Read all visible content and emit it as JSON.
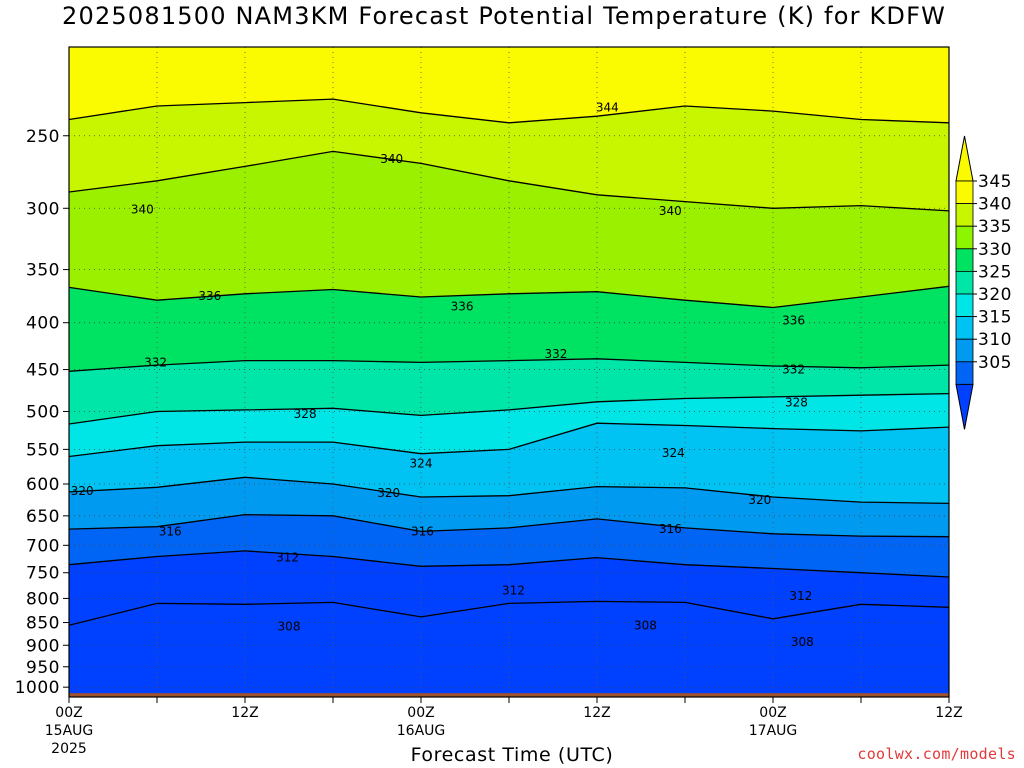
{
  "title": "2025081500 NAM3KM Forecast Potential Temperature (K) for KDFW",
  "credit": "coolwx.com/models",
  "chart_data": {
    "type": "contour",
    "variable": "Potential Temperature (K)",
    "xlabel": "Forecast Time (UTC)",
    "ylabel": "",
    "x_forecast_hours": [
      0,
      6,
      12,
      18,
      24,
      30,
      36,
      42,
      48,
      54,
      60
    ],
    "x_ticks": [
      {
        "hour": 0,
        "label": "00Z",
        "sub": "15AUG",
        "sub2": "2025"
      },
      {
        "hour": 12,
        "label": "12Z",
        "sub": "",
        "sub2": ""
      },
      {
        "hour": 24,
        "label": "00Z",
        "sub": "16AUG",
        "sub2": ""
      },
      {
        "hour": 36,
        "label": "12Z",
        "sub": "",
        "sub2": ""
      },
      {
        "hour": 48,
        "label": "00Z",
        "sub": "17AUG",
        "sub2": ""
      },
      {
        "hour": 60,
        "label": "12Z",
        "sub": "",
        "sub2": ""
      }
    ],
    "y_ticks": [
      "250",
      "300",
      "350",
      "400",
      "450",
      "500",
      "550",
      "600",
      "650",
      "700",
      "750",
      "800",
      "850",
      "900",
      "950",
      "1000"
    ],
    "ylim": [
      1025,
      200
    ],
    "y_scale": "log",
    "colorbar": {
      "labels": [
        "345",
        "340",
        "335",
        "330",
        "325",
        "320",
        "315",
        "310",
        "305"
      ],
      "colors": [
        "#fafa00",
        "#c8f500",
        "#8ef500",
        "#00e262",
        "#00e6a8",
        "#00e6e6",
        "#00c3f3",
        "#009af0",
        "#0064f5",
        "#0040ff"
      ]
    },
    "contour_lines": [
      {
        "label": "308",
        "theta": 308,
        "profile": [
          [
            0,
            856
          ],
          [
            6,
            810
          ],
          [
            12,
            812
          ],
          [
            18,
            808
          ],
          [
            24,
            838
          ],
          [
            30,
            810
          ],
          [
            36,
            806
          ],
          [
            42,
            808
          ],
          [
            48,
            842
          ],
          [
            54,
            812
          ],
          [
            60,
            818
          ]
        ]
      },
      {
        "label": "312",
        "theta": 312,
        "profile": [
          [
            0,
            735
          ],
          [
            6,
            720
          ],
          [
            12,
            710
          ],
          [
            18,
            720
          ],
          [
            24,
            738
          ],
          [
            30,
            735
          ],
          [
            36,
            722
          ],
          [
            42,
            735
          ],
          [
            48,
            742
          ],
          [
            54,
            750
          ],
          [
            60,
            758
          ]
        ]
      },
      {
        "label": "316",
        "theta": 316,
        "profile": [
          [
            0,
            672
          ],
          [
            6,
            668
          ],
          [
            12,
            648
          ],
          [
            18,
            650
          ],
          [
            24,
            676
          ],
          [
            30,
            670
          ],
          [
            36,
            655
          ],
          [
            42,
            670
          ],
          [
            48,
            680
          ],
          [
            54,
            684
          ],
          [
            60,
            685
          ]
        ]
      },
      {
        "label": "320",
        "theta": 320,
        "profile": [
          [
            0,
            612
          ],
          [
            6,
            605
          ],
          [
            12,
            590
          ],
          [
            18,
            600
          ],
          [
            24,
            620
          ],
          [
            30,
            618
          ],
          [
            36,
            604
          ],
          [
            42,
            606
          ],
          [
            48,
            620
          ],
          [
            54,
            628
          ],
          [
            60,
            630
          ]
        ]
      },
      {
        "label": "324",
        "theta": 324,
        "profile": [
          [
            0,
            560
          ],
          [
            6,
            545
          ],
          [
            12,
            540
          ],
          [
            18,
            540
          ],
          [
            24,
            556
          ],
          [
            30,
            550
          ],
          [
            36,
            515
          ],
          [
            42,
            518
          ],
          [
            48,
            522
          ],
          [
            54,
            525
          ],
          [
            60,
            520
          ]
        ]
      },
      {
        "label": "328",
        "theta": 328,
        "profile": [
          [
            0,
            516
          ],
          [
            6,
            500
          ],
          [
            12,
            498
          ],
          [
            18,
            496
          ],
          [
            24,
            505
          ],
          [
            30,
            498
          ],
          [
            36,
            488
          ],
          [
            42,
            484
          ],
          [
            48,
            482
          ],
          [
            54,
            480
          ],
          [
            60,
            478
          ]
        ]
      },
      {
        "label": "332",
        "theta": 332,
        "profile": [
          [
            0,
            452
          ],
          [
            6,
            445
          ],
          [
            12,
            440
          ],
          [
            18,
            440
          ],
          [
            24,
            442
          ],
          [
            30,
            440
          ],
          [
            36,
            438
          ],
          [
            42,
            442
          ],
          [
            48,
            446
          ],
          [
            54,
            448
          ],
          [
            60,
            445
          ]
        ]
      },
      {
        "label": "336",
        "theta": 336,
        "profile": [
          [
            0,
            366
          ],
          [
            6,
            378
          ],
          [
            12,
            372
          ],
          [
            18,
            368
          ],
          [
            24,
            375
          ],
          [
            30,
            372
          ],
          [
            36,
            370
          ],
          [
            42,
            378
          ],
          [
            48,
            385
          ],
          [
            54,
            375
          ],
          [
            60,
            365
          ]
        ]
      },
      {
        "label": "340",
        "theta": 340,
        "profile": [
          [
            0,
            288
          ],
          [
            6,
            280
          ],
          [
            12,
            270
          ],
          [
            18,
            260
          ],
          [
            24,
            268
          ],
          [
            30,
            280
          ],
          [
            36,
            290
          ],
          [
            42,
            295
          ],
          [
            48,
            300
          ],
          [
            54,
            298
          ],
          [
            60,
            302
          ]
        ]
      },
      {
        "label": "344",
        "theta": 344,
        "profile": [
          [
            0,
            240
          ],
          [
            6,
            232
          ],
          [
            12,
            230
          ],
          [
            18,
            228
          ],
          [
            24,
            236
          ],
          [
            30,
            242
          ],
          [
            36,
            238
          ],
          [
            42,
            232
          ],
          [
            48,
            235
          ],
          [
            54,
            240
          ],
          [
            60,
            242
          ]
        ]
      }
    ],
    "contour_labels": [
      {
        "text": "344",
        "hour": 36.7,
        "p": 233
      },
      {
        "text": "340",
        "hour": 22.0,
        "p": 265
      },
      {
        "text": "340",
        "hour": 5.0,
        "p": 301
      },
      {
        "text": "340",
        "hour": 41.0,
        "p": 302
      },
      {
        "text": "336",
        "hour": 9.6,
        "p": 374
      },
      {
        "text": "336",
        "hour": 26.8,
        "p": 384
      },
      {
        "text": "336",
        "hour": 49.4,
        "p": 398
      },
      {
        "text": "332",
        "hour": 5.9,
        "p": 442
      },
      {
        "text": "332",
        "hour": 33.2,
        "p": 433
      },
      {
        "text": "332",
        "hour": 49.4,
        "p": 450
      },
      {
        "text": "328",
        "hour": 16.1,
        "p": 503
      },
      {
        "text": "328",
        "hour": 49.6,
        "p": 489
      },
      {
        "text": "324",
        "hour": 24.0,
        "p": 570
      },
      {
        "text": "324",
        "hour": 41.2,
        "p": 555
      },
      {
        "text": "320",
        "hour": 0.9,
        "p": 611
      },
      {
        "text": "320",
        "hour": 21.8,
        "p": 614
      },
      {
        "text": "320",
        "hour": 47.1,
        "p": 625
      },
      {
        "text": "316",
        "hour": 6.9,
        "p": 676
      },
      {
        "text": "316",
        "hour": 24.1,
        "p": 676
      },
      {
        "text": "316",
        "hour": 41.0,
        "p": 672
      },
      {
        "text": "312",
        "hour": 14.9,
        "p": 722
      },
      {
        "text": "312",
        "hour": 30.3,
        "p": 784
      },
      {
        "text": "312",
        "hour": 49.9,
        "p": 795
      },
      {
        "text": "308",
        "hour": 15.0,
        "p": 858
      },
      {
        "text": "308",
        "hour": 39.3,
        "p": 856
      },
      {
        "text": "308",
        "hour": 50.0,
        "p": 893
      }
    ]
  }
}
